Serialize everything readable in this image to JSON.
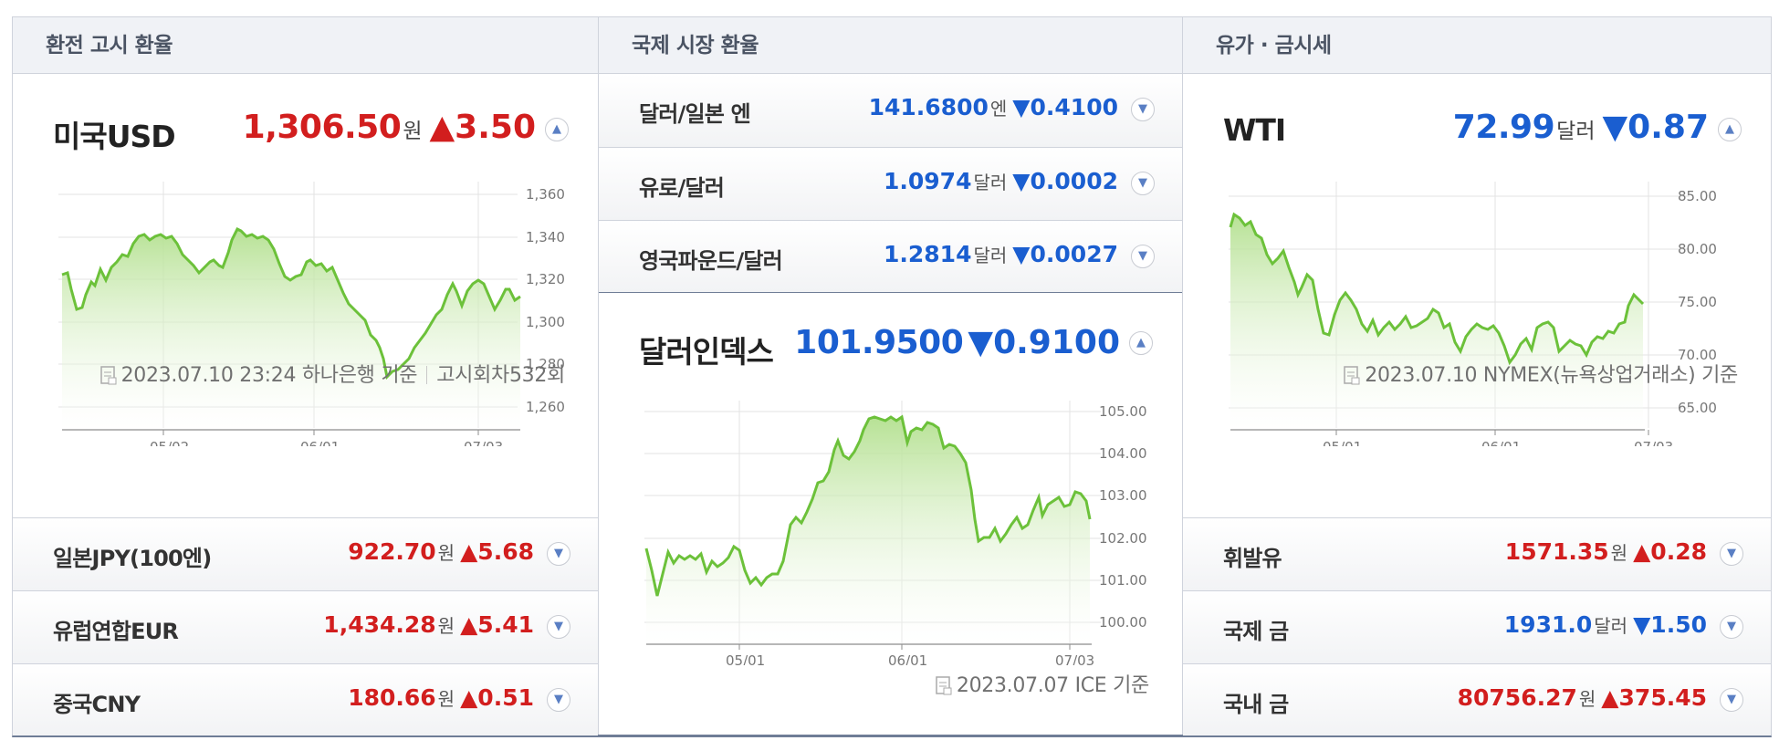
{
  "col1": {
    "header": "환전 고시 환율",
    "main": {
      "name": "미국USD",
      "value": "1,306.50",
      "unit": "원",
      "change": "▲3.50"
    },
    "chart": {
      "ylabels": [
        "1,360",
        "1,340",
        "1,320",
        "1,300",
        "1,280",
        "1,260"
      ],
      "xlabels": [
        "05/02",
        "06/01",
        "07/03"
      ]
    },
    "footer": {
      "date": "2023.07.10 23:24",
      "source": "하나은행 기준",
      "round": "고시회차532회"
    },
    "rows": [
      {
        "name": "일본JPY(100엔)",
        "value": "922.70",
        "unit": "원",
        "change": "▲5.68"
      },
      {
        "name": "유럽연합EUR",
        "value": "1,434.28",
        "unit": "원",
        "change": "▲5.41"
      },
      {
        "name": "중국CNY",
        "value": "180.66",
        "unit": "원",
        "change": "▲0.51"
      }
    ]
  },
  "col2": {
    "header": "국제 시장 환율",
    "rows": [
      {
        "name": "달러/일본 엔",
        "value": "141.6800",
        "unit": "엔",
        "change": "▼0.4100"
      },
      {
        "name": "유로/달러",
        "value": "1.0974",
        "unit": "달러",
        "change": "▼0.0002"
      },
      {
        "name": "영국파운드/달러",
        "value": "1.2814",
        "unit": "달러",
        "change": "▼0.0027"
      }
    ],
    "main": {
      "name": "달러인덱스",
      "value": "101.9500",
      "change": "▼0.9100"
    },
    "chart": {
      "ylabels": [
        "105.00",
        "104.00",
        "103.00",
        "102.00",
        "101.00",
        "100.00"
      ],
      "xlabels": [
        "05/01",
        "06/01",
        "07/03"
      ]
    },
    "footer": {
      "date": "2023.07.07",
      "source": "ICE 기준"
    }
  },
  "col3": {
    "header": "유가 · 금시세",
    "main": {
      "name": "WTI",
      "value": "72.99",
      "unit": "달러",
      "change": "▼0.87"
    },
    "chart": {
      "ylabels": [
        "85.00",
        "80.00",
        "75.00",
        "70.00",
        "65.00"
      ],
      "xlabels": [
        "05/01",
        "06/01",
        "07/03"
      ]
    },
    "footer": {
      "date": "2023.07.10",
      "source": "NYMEX(뉴욕상업거래소) 기준"
    },
    "rows": [
      {
        "name": "휘발유",
        "value": "1571.35",
        "unit": "원",
        "change": "▲0.28"
      },
      {
        "name": "국제 금",
        "value": "1931.0",
        "unit": "달러",
        "change": "▼1.50"
      },
      {
        "name": "국내 금",
        "value": "80756.27",
        "unit": "원",
        "change": "▲375.45"
      }
    ]
  },
  "colors": {
    "up": "#d21e1e",
    "down": "#1a5ed0",
    "line": "#6cc13a"
  },
  "icons": {
    "collapse": "chevron-up-icon",
    "expand": "chevron-down-icon",
    "source": "document-icon"
  }
}
